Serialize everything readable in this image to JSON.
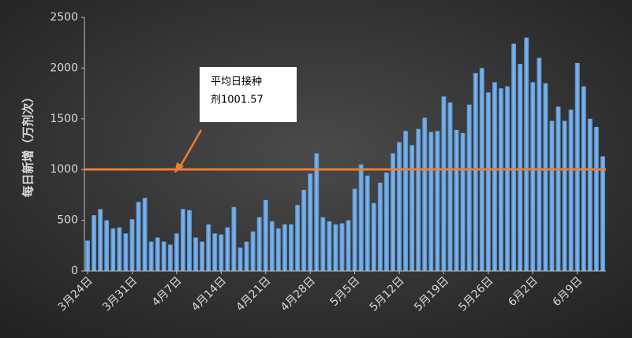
{
  "chart_data": {
    "type": "bar",
    "y_label": "每日新增（万剂次）",
    "categories": [
      "3月24日",
      null,
      null,
      null,
      null,
      null,
      null,
      "3月31日",
      null,
      null,
      null,
      null,
      null,
      null,
      "4月7日",
      null,
      null,
      null,
      null,
      null,
      null,
      "4月14日",
      null,
      null,
      null,
      null,
      null,
      null,
      "4月21日",
      null,
      null,
      null,
      null,
      null,
      null,
      "4月28日",
      null,
      null,
      null,
      null,
      null,
      null,
      "5月5日",
      null,
      null,
      null,
      null,
      null,
      null,
      "5月12日",
      null,
      null,
      null,
      null,
      null,
      null,
      "5月19日",
      null,
      null,
      null,
      null,
      null,
      null,
      "5月26日",
      null,
      null,
      null,
      null,
      null,
      null,
      "6月2日",
      null,
      null,
      null,
      null,
      null,
      null,
      "6月9日",
      null,
      null,
      null,
      null
    ],
    "values": [
      300,
      550,
      610,
      500,
      420,
      430,
      370,
      510,
      680,
      720,
      290,
      330,
      290,
      260,
      370,
      610,
      600,
      330,
      290,
      460,
      370,
      360,
      430,
      630,
      230,
      290,
      390,
      530,
      700,
      490,
      420,
      460,
      460,
      650,
      800,
      960,
      1160,
      530,
      490,
      460,
      470,
      500,
      810,
      1050,
      940,
      670,
      870,
      970,
      1160,
      1270,
      1380,
      1240,
      1400,
      1510,
      1370,
      1380,
      1720,
      1660,
      1390,
      1360,
      1640,
      1950,
      2000,
      1760,
      1860,
      1800,
      1820,
      2240,
      2040,
      2300,
      1860,
      2100,
      1850,
      1480,
      1620,
      1480,
      1590,
      2050,
      1820,
      1500,
      1420,
      1130
    ],
    "color": "#5b9bd5",
    "ylim": [
      0,
      2500
    ],
    "yticks": [
      0,
      500,
      1000,
      1500,
      2000,
      2500
    ],
    "reference_line": {
      "value": 1001.57,
      "color": "#ed7d31"
    },
    "annotation": [
      "平均日接种",
      "剂1001.57"
    ]
  }
}
